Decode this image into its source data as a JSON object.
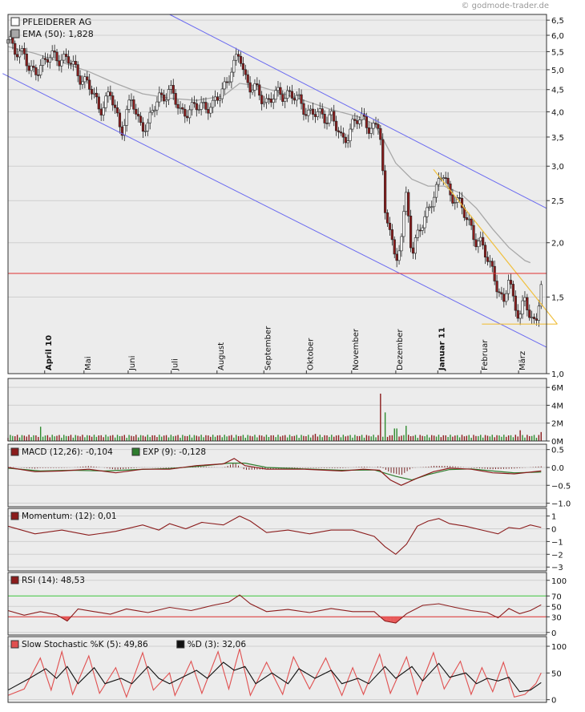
{
  "source_credit": "© godmode-trader.de",
  "colors": {
    "panel_bg": "#ececec",
    "border": "#333333",
    "grid": "#cfcfcf",
    "candle_up": "#ffffff",
    "candle_down": "#8b1c1c",
    "ema": "#a8a8a8",
    "channel": "#6b6bf0",
    "triangle": "#f0c040",
    "resistance": "#e03030",
    "volume_up": "#2e8b2e",
    "volume_down": "#8b1c1c",
    "macd": "#8b1c1c",
    "signal": "#2e7d2e",
    "rsi_upper": "#44cc44",
    "rsi_lower": "#e03030",
    "stoch_k": "#e05050",
    "stoch_d": "#111111"
  },
  "chart_data": [
    {
      "type": "candlestick",
      "id": "price",
      "legend": [
        {
          "label": "PFLEIDERER AG",
          "swatch": "#ffffff"
        },
        {
          "label": "EMA (50): 1,828",
          "swatch": "#a8a8a8"
        }
      ],
      "scale": "log",
      "ylim": [
        1.0,
        6.7
      ],
      "y_ticks": [
        "6,5",
        "6,0",
        "5,5",
        "5,0",
        "4,5",
        "4,0",
        "3,5",
        "3,0",
        "2,5",
        "2,0",
        "1,5",
        "1,0"
      ],
      "y_tick_values": [
        6.5,
        6.0,
        5.5,
        5.0,
        4.5,
        4.0,
        3.5,
        3.0,
        2.5,
        2.0,
        1.5,
        1.0
      ],
      "x_labels": [
        "April 10",
        "Mai",
        "Juni",
        "Juli",
        "August",
        "September",
        "Oktober",
        "November",
        "Dezember",
        "Januar 11",
        "Februar",
        "März"
      ],
      "x_label_bold": [
        true,
        false,
        false,
        false,
        false,
        false,
        false,
        false,
        false,
        true,
        false,
        false
      ],
      "x_label_pos": [
        0.08,
        0.153,
        0.235,
        0.315,
        0.4,
        0.487,
        0.566,
        0.65,
        0.732,
        0.81,
        0.89,
        0.96
      ],
      "close_path": [
        [
          0.0,
          5.75
        ],
        [
          0.03,
          5.45
        ],
        [
          0.04,
          4.85
        ],
        [
          0.06,
          5.15
        ],
        [
          0.09,
          5.4
        ],
        [
          0.11,
          5.25
        ],
        [
          0.13,
          4.95
        ],
        [
          0.15,
          4.55
        ],
        [
          0.17,
          4.1
        ],
        [
          0.19,
          4.35
        ],
        [
          0.21,
          3.65
        ],
        [
          0.23,
          4.25
        ],
        [
          0.24,
          3.85
        ],
        [
          0.26,
          3.7
        ],
        [
          0.28,
          4.35
        ],
        [
          0.3,
          4.45
        ],
        [
          0.32,
          4.05
        ],
        [
          0.34,
          4.0
        ],
        [
          0.36,
          4.2
        ],
        [
          0.38,
          4.05
        ],
        [
          0.4,
          4.6
        ],
        [
          0.42,
          5.05
        ],
        [
          0.43,
          5.5
        ],
        [
          0.44,
          4.85
        ],
        [
          0.45,
          4.55
        ],
        [
          0.46,
          4.45
        ],
        [
          0.48,
          4.25
        ],
        [
          0.5,
          4.35
        ],
        [
          0.52,
          4.45
        ],
        [
          0.54,
          4.2
        ],
        [
          0.56,
          4.0
        ],
        [
          0.58,
          3.9
        ],
        [
          0.6,
          3.95
        ],
        [
          0.61,
          3.65
        ],
        [
          0.62,
          3.4
        ],
        [
          0.64,
          3.75
        ],
        [
          0.66,
          3.85
        ],
        [
          0.68,
          3.65
        ],
        [
          0.69,
          3.7
        ],
        [
          0.7,
          2.3
        ],
        [
          0.71,
          2.25
        ],
        [
          0.72,
          1.7
        ],
        [
          0.73,
          2.05
        ],
        [
          0.74,
          2.6
        ],
        [
          0.75,
          1.9
        ],
        [
          0.77,
          2.2
        ],
        [
          0.78,
          2.4
        ],
        [
          0.79,
          2.6
        ],
        [
          0.8,
          2.7
        ],
        [
          0.81,
          2.9
        ],
        [
          0.82,
          2.6
        ],
        [
          0.83,
          2.55
        ],
        [
          0.84,
          2.4
        ],
        [
          0.86,
          2.2
        ],
        [
          0.87,
          2.0
        ],
        [
          0.88,
          1.95
        ],
        [
          0.9,
          1.75
        ],
        [
          0.91,
          1.55
        ],
        [
          0.92,
          1.4
        ],
        [
          0.93,
          1.7
        ],
        [
          0.94,
          1.45
        ],
        [
          0.95,
          1.35
        ],
        [
          0.96,
          1.45
        ],
        [
          0.97,
          1.38
        ],
        [
          0.98,
          1.3
        ],
        [
          0.99,
          1.6
        ]
      ],
      "ema_path": [
        [
          0.0,
          5.65
        ],
        [
          0.05,
          5.45
        ],
        [
          0.1,
          5.2
        ],
        [
          0.15,
          4.95
        ],
        [
          0.2,
          4.65
        ],
        [
          0.25,
          4.4
        ],
        [
          0.3,
          4.3
        ],
        [
          0.35,
          4.25
        ],
        [
          0.4,
          4.35
        ],
        [
          0.43,
          4.65
        ],
        [
          0.46,
          4.6
        ],
        [
          0.5,
          4.45
        ],
        [
          0.55,
          4.25
        ],
        [
          0.6,
          4.05
        ],
        [
          0.65,
          3.9
        ],
        [
          0.68,
          3.75
        ],
        [
          0.7,
          3.4
        ],
        [
          0.72,
          3.05
        ],
        [
          0.75,
          2.8
        ],
        [
          0.78,
          2.7
        ],
        [
          0.81,
          2.7
        ],
        [
          0.84,
          2.6
        ],
        [
          0.87,
          2.4
        ],
        [
          0.9,
          2.15
        ],
        [
          0.93,
          1.95
        ],
        [
          0.96,
          1.82
        ],
        [
          0.97,
          1.8
        ]
      ],
      "channel_upper": [
        [
          0.3,
          6.7
        ],
        [
          1.0,
          2.4
        ]
      ],
      "channel_lower": [
        [
          -0.01,
          4.9
        ],
        [
          1.0,
          1.15
        ]
      ],
      "triangle": [
        [
          0.79,
          2.95
        ],
        [
          1.02,
          1.3
        ],
        [
          0.88,
          1.3
        ]
      ],
      "resistance_level": 1.7
    },
    {
      "type": "bar",
      "id": "volume",
      "y_ticks": [
        "6M",
        "4M",
        "2M",
        "0M"
      ],
      "y_tick_values": [
        6,
        4,
        2,
        0
      ],
      "ylim": [
        0,
        7
      ],
      "spikes": [
        [
          0.06,
          1.6
        ],
        [
          0.57,
          0.8
        ],
        [
          0.69,
          5.3
        ],
        [
          0.7,
          3.2
        ],
        [
          0.72,
          1.4
        ],
        [
          0.74,
          1.7
        ],
        [
          0.95,
          1.2
        ],
        [
          0.99,
          1.0
        ]
      ]
    },
    {
      "type": "line",
      "id": "macd",
      "legend": [
        {
          "label": "MACD (12,26): -0,104",
          "swatch": "#8b1c1c"
        },
        {
          "label": "EXP (9): -0,128",
          "swatch": "#2e7d2e"
        }
      ],
      "y_ticks": [
        "0.5",
        "0.0",
        "−0.5",
        "−1.0"
      ],
      "y_tick_values": [
        0.5,
        0.0,
        -0.5,
        -1.0
      ],
      "ylim": [
        -1.1,
        0.65
      ],
      "macd_path": [
        [
          0.0,
          0.0
        ],
        [
          0.05,
          -0.12
        ],
        [
          0.1,
          -0.1
        ],
        [
          0.15,
          -0.05
        ],
        [
          0.2,
          -0.15
        ],
        [
          0.25,
          -0.05
        ],
        [
          0.3,
          -0.05
        ],
        [
          0.35,
          0.05
        ],
        [
          0.4,
          0.1
        ],
        [
          0.42,
          0.25
        ],
        [
          0.44,
          0.05
        ],
        [
          0.48,
          -0.05
        ],
        [
          0.55,
          -0.05
        ],
        [
          0.62,
          -0.1
        ],
        [
          0.66,
          -0.05
        ],
        [
          0.69,
          -0.08
        ],
        [
          0.71,
          -0.35
        ],
        [
          0.73,
          -0.5
        ],
        [
          0.76,
          -0.3
        ],
        [
          0.79,
          -0.12
        ],
        [
          0.82,
          -0.02
        ],
        [
          0.86,
          -0.05
        ],
        [
          0.9,
          -0.15
        ],
        [
          0.94,
          -0.18
        ],
        [
          0.99,
          -0.1
        ]
      ],
      "signal_path": [
        [
          0.0,
          -0.02
        ],
        [
          0.06,
          -0.1
        ],
        [
          0.12,
          -0.08
        ],
        [
          0.18,
          -0.1
        ],
        [
          0.24,
          -0.06
        ],
        [
          0.3,
          -0.03
        ],
        [
          0.36,
          0.04
        ],
        [
          0.41,
          0.12
        ],
        [
          0.44,
          0.12
        ],
        [
          0.48,
          0.0
        ],
        [
          0.55,
          -0.04
        ],
        [
          0.62,
          -0.08
        ],
        [
          0.68,
          -0.07
        ],
        [
          0.72,
          -0.25
        ],
        [
          0.75,
          -0.35
        ],
        [
          0.78,
          -0.2
        ],
        [
          0.82,
          -0.06
        ],
        [
          0.86,
          -0.04
        ],
        [
          0.9,
          -0.1
        ],
        [
          0.94,
          -0.15
        ],
        [
          0.99,
          -0.13
        ]
      ]
    },
    {
      "type": "line",
      "id": "momentum",
      "legend": [
        {
          "label": "Momentum: (12): 0,01",
          "swatch": "#8b1c1c"
        }
      ],
      "y_ticks": [
        "1",
        "0",
        "−1",
        "−2",
        "−3"
      ],
      "y_tick_values": [
        1,
        0,
        -1,
        -2,
        -3
      ],
      "ylim": [
        -3.3,
        1.6
      ],
      "path": [
        [
          0.0,
          0.2
        ],
        [
          0.05,
          -0.4
        ],
        [
          0.1,
          -0.1
        ],
        [
          0.15,
          -0.5
        ],
        [
          0.2,
          -0.2
        ],
        [
          0.25,
          0.3
        ],
        [
          0.28,
          -0.1
        ],
        [
          0.3,
          0.4
        ],
        [
          0.33,
          0.0
        ],
        [
          0.36,
          0.5
        ],
        [
          0.4,
          0.3
        ],
        [
          0.43,
          1.0
        ],
        [
          0.45,
          0.6
        ],
        [
          0.48,
          -0.3
        ],
        [
          0.52,
          -0.1
        ],
        [
          0.56,
          -0.4
        ],
        [
          0.6,
          -0.1
        ],
        [
          0.64,
          -0.1
        ],
        [
          0.68,
          -0.6
        ],
        [
          0.7,
          -1.4
        ],
        [
          0.72,
          -2.0
        ],
        [
          0.74,
          -1.2
        ],
        [
          0.76,
          0.2
        ],
        [
          0.78,
          0.6
        ],
        [
          0.8,
          0.8
        ],
        [
          0.82,
          0.4
        ],
        [
          0.85,
          0.2
        ],
        [
          0.88,
          -0.1
        ],
        [
          0.91,
          -0.4
        ],
        [
          0.93,
          0.1
        ],
        [
          0.95,
          0.0
        ],
        [
          0.97,
          0.3
        ],
        [
          0.99,
          0.1
        ]
      ]
    },
    {
      "type": "line",
      "id": "rsi",
      "legend": [
        {
          "label": "RSI (14): 48,53",
          "swatch": "#8b1c1c"
        }
      ],
      "y_ticks": [
        "100",
        "70",
        "50",
        "30",
        "0"
      ],
      "y_tick_values": [
        100,
        70,
        50,
        30,
        0
      ],
      "ylim": [
        -5,
        115
      ],
      "upper": 70,
      "lower": 30,
      "path": [
        [
          0.0,
          42
        ],
        [
          0.03,
          33
        ],
        [
          0.06,
          40
        ],
        [
          0.09,
          34
        ],
        [
          0.11,
          22
        ],
        [
          0.13,
          45
        ],
        [
          0.16,
          40
        ],
        [
          0.19,
          35
        ],
        [
          0.22,
          45
        ],
        [
          0.26,
          38
        ],
        [
          0.3,
          48
        ],
        [
          0.34,
          42
        ],
        [
          0.38,
          52
        ],
        [
          0.41,
          58
        ],
        [
          0.43,
          72
        ],
        [
          0.45,
          55
        ],
        [
          0.48,
          40
        ],
        [
          0.52,
          44
        ],
        [
          0.56,
          38
        ],
        [
          0.6,
          46
        ],
        [
          0.64,
          40
        ],
        [
          0.68,
          40
        ],
        [
          0.7,
          22
        ],
        [
          0.72,
          18
        ],
        [
          0.74,
          36
        ],
        [
          0.77,
          52
        ],
        [
          0.8,
          55
        ],
        [
          0.83,
          48
        ],
        [
          0.86,
          42
        ],
        [
          0.89,
          38
        ],
        [
          0.91,
          28
        ],
        [
          0.93,
          46
        ],
        [
          0.95,
          36
        ],
        [
          0.97,
          42
        ],
        [
          0.99,
          53
        ]
      ]
    },
    {
      "type": "line",
      "id": "stochastic",
      "legend": [
        {
          "label": "Slow Stochastic %K (5): 49,86",
          "swatch": "#e05050"
        },
        {
          "label": "%D (3): 32,06",
          "swatch": "#111111"
        }
      ],
      "y_ticks": [
        "100",
        "50",
        "0"
      ],
      "y_tick_values": [
        100,
        50,
        0
      ],
      "ylim": [
        -5,
        118
      ],
      "k_path": [
        [
          0.0,
          8
        ],
        [
          0.03,
          20
        ],
        [
          0.06,
          78
        ],
        [
          0.08,
          18
        ],
        [
          0.1,
          90
        ],
        [
          0.12,
          10
        ],
        [
          0.15,
          82
        ],
        [
          0.17,
          12
        ],
        [
          0.2,
          60
        ],
        [
          0.22,
          5
        ],
        [
          0.25,
          88
        ],
        [
          0.27,
          18
        ],
        [
          0.3,
          50
        ],
        [
          0.31,
          8
        ],
        [
          0.34,
          72
        ],
        [
          0.36,
          12
        ],
        [
          0.39,
          90
        ],
        [
          0.41,
          20
        ],
        [
          0.43,
          95
        ],
        [
          0.45,
          8
        ],
        [
          0.48,
          70
        ],
        [
          0.51,
          10
        ],
        [
          0.53,
          80
        ],
        [
          0.56,
          20
        ],
        [
          0.59,
          78
        ],
        [
          0.62,
          8
        ],
        [
          0.64,
          60
        ],
        [
          0.66,
          10
        ],
        [
          0.69,
          85
        ],
        [
          0.71,
          12
        ],
        [
          0.74,
          80
        ],
        [
          0.76,
          10
        ],
        [
          0.79,
          88
        ],
        [
          0.81,
          20
        ],
        [
          0.84,
          72
        ],
        [
          0.86,
          10
        ],
        [
          0.88,
          60
        ],
        [
          0.9,
          15
        ],
        [
          0.92,
          70
        ],
        [
          0.94,
          5
        ],
        [
          0.96,
          10
        ],
        [
          0.98,
          30
        ],
        [
          0.99,
          50
        ]
      ],
      "d_path": [
        [
          0.0,
          18
        ],
        [
          0.04,
          40
        ],
        [
          0.07,
          58
        ],
        [
          0.09,
          40
        ],
        [
          0.11,
          62
        ],
        [
          0.13,
          30
        ],
        [
          0.16,
          60
        ],
        [
          0.18,
          30
        ],
        [
          0.21,
          40
        ],
        [
          0.23,
          30
        ],
        [
          0.26,
          62
        ],
        [
          0.28,
          40
        ],
        [
          0.3,
          30
        ],
        [
          0.32,
          40
        ],
        [
          0.35,
          55
        ],
        [
          0.37,
          40
        ],
        [
          0.4,
          70
        ],
        [
          0.42,
          55
        ],
        [
          0.44,
          62
        ],
        [
          0.46,
          30
        ],
        [
          0.49,
          50
        ],
        [
          0.52,
          30
        ],
        [
          0.54,
          58
        ],
        [
          0.57,
          40
        ],
        [
          0.6,
          55
        ],
        [
          0.62,
          30
        ],
        [
          0.65,
          40
        ],
        [
          0.67,
          30
        ],
        [
          0.7,
          62
        ],
        [
          0.72,
          40
        ],
        [
          0.75,
          62
        ],
        [
          0.77,
          35
        ],
        [
          0.8,
          68
        ],
        [
          0.82,
          42
        ],
        [
          0.85,
          50
        ],
        [
          0.87,
          30
        ],
        [
          0.89,
          40
        ],
        [
          0.91,
          35
        ],
        [
          0.93,
          42
        ],
        [
          0.95,
          15
        ],
        [
          0.97,
          18
        ],
        [
          0.99,
          32
        ]
      ]
    }
  ]
}
